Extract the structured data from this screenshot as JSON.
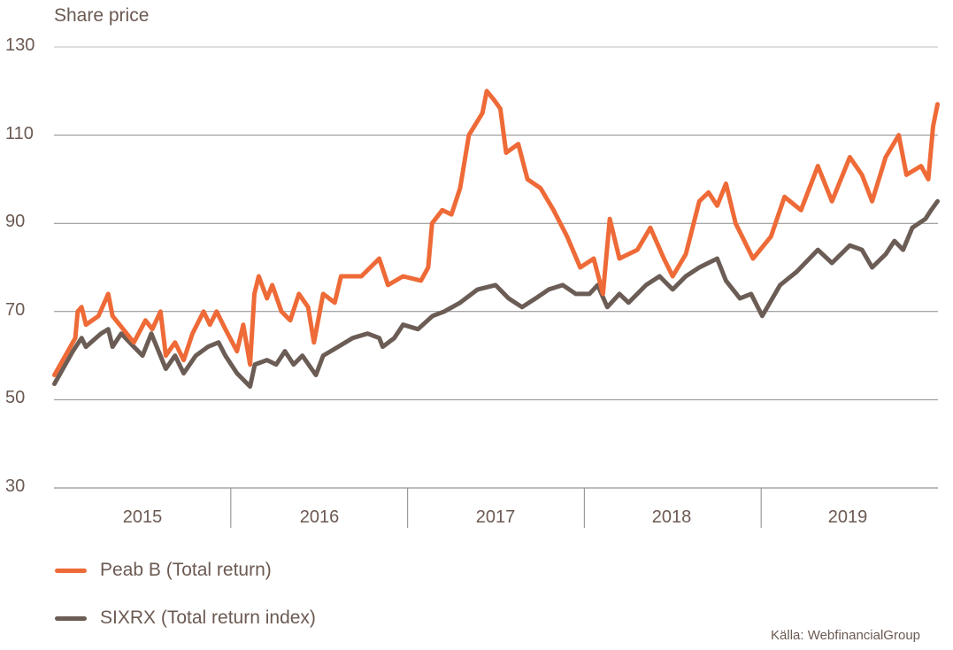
{
  "chart_data": {
    "type": "line",
    "title": "Share price",
    "ylim": [
      30,
      130
    ],
    "yticks": [
      130,
      110,
      90,
      70,
      50,
      30
    ],
    "xlim": [
      "2015-01-01",
      "2020-01-01"
    ],
    "xtick_labels": [
      "2015",
      "2016",
      "2017",
      "2018",
      "2019"
    ],
    "grid": true,
    "legend_position": "bottom-left",
    "source": "Källa: WebfinancialGroup",
    "series": [
      {
        "name": "Peab B (Total return)",
        "color": "#ee6a37",
        "points": [
          [
            "2015-01-02",
            55.6
          ],
          [
            "2015-02-14",
            64
          ],
          [
            "2015-02-19",
            70
          ],
          [
            "2015-02-27",
            71
          ],
          [
            "2015-03-08",
            67
          ],
          [
            "2015-04-03",
            69
          ],
          [
            "2015-04-23",
            74
          ],
          [
            "2015-05-02",
            69
          ],
          [
            "2015-06-15",
            63
          ],
          [
            "2015-07-09",
            68
          ],
          [
            "2015-07-23",
            66
          ],
          [
            "2015-08-09",
            70
          ],
          [
            "2015-08-20",
            60
          ],
          [
            "2015-09-08",
            63
          ],
          [
            "2015-09-26",
            59
          ],
          [
            "2015-10-14",
            65
          ],
          [
            "2015-11-06",
            70
          ],
          [
            "2015-11-19",
            67
          ],
          [
            "2015-12-03",
            70
          ],
          [
            "2015-12-21",
            66
          ],
          [
            "2016-01-14",
            61
          ],
          [
            "2016-01-27",
            67
          ],
          [
            "2016-02-10",
            58
          ],
          [
            "2016-02-19",
            74
          ],
          [
            "2016-02-28",
            78
          ],
          [
            "2016-03-16",
            73
          ],
          [
            "2016-03-27",
            76
          ],
          [
            "2016-04-15",
            70
          ],
          [
            "2016-05-03",
            68
          ],
          [
            "2016-05-21",
            74
          ],
          [
            "2016-06-09",
            71
          ],
          [
            "2016-06-21",
            63
          ],
          [
            "2016-07-10",
            74
          ],
          [
            "2016-08-03",
            72
          ],
          [
            "2016-08-16",
            78
          ],
          [
            "2016-09-09",
            78
          ],
          [
            "2016-09-27",
            78
          ],
          [
            "2016-11-03",
            82
          ],
          [
            "2016-11-21",
            76
          ],
          [
            "2016-12-22",
            78
          ],
          [
            "2017-01-28",
            77
          ],
          [
            "2017-02-12",
            80
          ],
          [
            "2017-02-20",
            90
          ],
          [
            "2017-03-13",
            93
          ],
          [
            "2017-04-01",
            92
          ],
          [
            "2017-04-19",
            98
          ],
          [
            "2017-05-07",
            110
          ],
          [
            "2017-06-04",
            115
          ],
          [
            "2017-06-13",
            120
          ],
          [
            "2017-06-28",
            118
          ],
          [
            "2017-07-11",
            116
          ],
          [
            "2017-07-23",
            106
          ],
          [
            "2017-08-17",
            108
          ],
          [
            "2017-09-05",
            100
          ],
          [
            "2017-10-02",
            98
          ],
          [
            "2017-10-29",
            93
          ],
          [
            "2017-11-26",
            87
          ],
          [
            "2017-12-23",
            80
          ],
          [
            "2018-01-20",
            82
          ],
          [
            "2018-02-08",
            74
          ],
          [
            "2018-02-22",
            91
          ],
          [
            "2018-03-14",
            82
          ],
          [
            "2018-04-20",
            84
          ],
          [
            "2018-05-17",
            89
          ],
          [
            "2018-06-14",
            82
          ],
          [
            "2018-07-02",
            78
          ],
          [
            "2018-07-29",
            83
          ],
          [
            "2018-08-26",
            95
          ],
          [
            "2018-09-14",
            97
          ],
          [
            "2018-10-02",
            94
          ],
          [
            "2018-10-20",
            99
          ],
          [
            "2018-11-09",
            90
          ],
          [
            "2018-11-27",
            86
          ],
          [
            "2018-12-15",
            82
          ],
          [
            "2019-01-21",
            87
          ],
          [
            "2019-02-18",
            96
          ],
          [
            "2019-03-24",
            93
          ],
          [
            "2019-04-28",
            103
          ],
          [
            "2019-05-27",
            95
          ],
          [
            "2019-07-03",
            105
          ],
          [
            "2019-07-28",
            101
          ],
          [
            "2019-08-18",
            95
          ],
          [
            "2019-09-15",
            105
          ],
          [
            "2019-10-12",
            110
          ],
          [
            "2019-10-28",
            101
          ],
          [
            "2019-11-27",
            103
          ],
          [
            "2019-12-12",
            100
          ],
          [
            "2019-12-22",
            112
          ],
          [
            "2019-12-31",
            117
          ]
        ]
      },
      {
        "name": "SIXRX (Total return index)",
        "color": "#6b5d55",
        "points": [
          [
            "2015-01-02",
            53.6
          ],
          [
            "2015-02-09",
            61
          ],
          [
            "2015-02-27",
            64
          ],
          [
            "2015-03-08",
            62
          ],
          [
            "2015-04-08",
            65
          ],
          [
            "2015-04-23",
            66
          ],
          [
            "2015-05-02",
            62
          ],
          [
            "2015-05-20",
            65
          ],
          [
            "2015-06-15",
            62
          ],
          [
            "2015-07-03",
            60
          ],
          [
            "2015-07-21",
            65
          ],
          [
            "2015-08-20",
            57
          ],
          [
            "2015-09-08",
            60
          ],
          [
            "2015-09-26",
            56
          ],
          [
            "2015-10-21",
            60
          ],
          [
            "2015-11-15",
            62
          ],
          [
            "2015-12-07",
            63
          ],
          [
            "2015-12-21",
            60
          ],
          [
            "2016-01-14",
            56
          ],
          [
            "2016-02-10",
            53
          ],
          [
            "2016-02-20",
            58
          ],
          [
            "2016-03-16",
            59
          ],
          [
            "2016-04-04",
            58
          ],
          [
            "2016-04-22",
            61
          ],
          [
            "2016-05-10",
            58
          ],
          [
            "2016-05-28",
            60
          ],
          [
            "2016-06-16",
            57
          ],
          [
            "2016-06-25",
            55.6
          ],
          [
            "2016-07-10",
            60
          ],
          [
            "2016-08-10",
            62
          ],
          [
            "2016-09-09",
            64
          ],
          [
            "2016-10-10",
            65
          ],
          [
            "2016-11-03",
            64
          ],
          [
            "2016-11-10",
            62
          ],
          [
            "2016-12-04",
            64
          ],
          [
            "2016-12-22",
            67
          ],
          [
            "2017-01-22",
            66
          ],
          [
            "2017-02-21",
            69
          ],
          [
            "2017-03-17",
            70
          ],
          [
            "2017-04-19",
            72
          ],
          [
            "2017-05-25",
            75
          ],
          [
            "2017-07-01",
            76
          ],
          [
            "2017-07-28",
            73
          ],
          [
            "2017-08-25",
            71
          ],
          [
            "2017-09-22",
            73
          ],
          [
            "2017-10-19",
            75
          ],
          [
            "2017-11-17",
            76
          ],
          [
            "2017-12-14",
            74
          ],
          [
            "2018-01-11",
            74
          ],
          [
            "2018-01-28",
            76
          ],
          [
            "2018-02-17",
            71
          ],
          [
            "2018-03-14",
            74
          ],
          [
            "2018-04-02",
            72
          ],
          [
            "2018-05-08",
            76
          ],
          [
            "2018-06-05",
            78
          ],
          [
            "2018-07-02",
            75
          ],
          [
            "2018-07-29",
            78
          ],
          [
            "2018-08-26",
            80
          ],
          [
            "2018-10-02",
            82
          ],
          [
            "2018-10-20",
            77
          ],
          [
            "2018-11-18",
            73
          ],
          [
            "2018-12-11",
            74
          ],
          [
            "2019-01-03",
            69
          ],
          [
            "2019-02-09",
            76
          ],
          [
            "2019-03-15",
            79
          ],
          [
            "2019-04-28",
            84
          ],
          [
            "2019-05-27",
            81
          ],
          [
            "2019-07-03",
            85
          ],
          [
            "2019-07-28",
            84
          ],
          [
            "2019-08-18",
            80
          ],
          [
            "2019-09-15",
            83
          ],
          [
            "2019-10-03",
            86
          ],
          [
            "2019-10-21",
            84
          ],
          [
            "2019-11-09",
            89
          ],
          [
            "2019-12-06",
            91
          ],
          [
            "2019-12-18",
            93
          ],
          [
            "2019-12-31",
            95
          ]
        ]
      }
    ]
  }
}
